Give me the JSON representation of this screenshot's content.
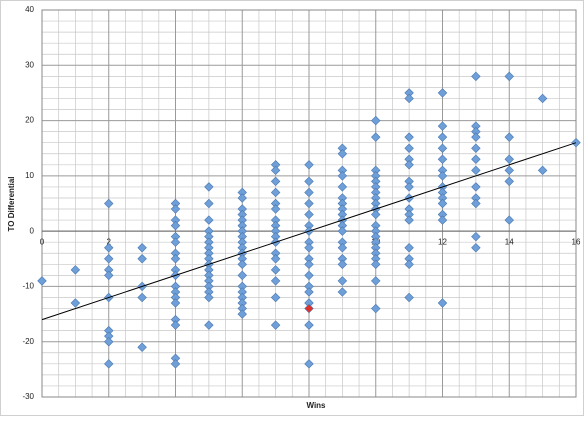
{
  "chart_data": {
    "type": "scatter",
    "x_label": "Wins",
    "y_label": "TO Differential",
    "xlim": [
      0,
      16
    ],
    "ylim": [
      -30,
      40
    ],
    "xticks": [
      0,
      2,
      4,
      6,
      8,
      10,
      12,
      14,
      16
    ],
    "yticks": [
      -30,
      -20,
      -10,
      0,
      10,
      20,
      30,
      40
    ],
    "grid": true,
    "minor_grid": true,
    "series": [
      {
        "color": "#6f9fd8",
        "x": [
          0,
          1,
          1,
          2,
          2,
          2,
          2,
          2,
          2,
          2,
          2,
          2,
          2,
          3,
          3,
          3,
          3,
          3,
          4,
          4,
          4,
          4,
          4,
          4,
          4,
          4,
          4,
          4,
          4,
          4,
          4,
          4,
          4,
          4,
          4,
          4,
          5,
          5,
          5,
          5,
          5,
          5,
          5,
          5,
          5,
          5,
          5,
          5,
          5,
          5,
          5,
          5,
          5,
          6,
          6,
          6,
          6,
          6,
          6,
          6,
          6,
          6,
          6,
          6,
          6,
          6,
          6,
          6,
          6,
          6,
          6,
          6,
          6,
          7,
          7,
          7,
          7,
          7,
          7,
          7,
          7,
          7,
          7,
          7,
          7,
          7,
          7,
          7,
          7,
          7,
          8,
          8,
          8,
          8,
          8,
          8,
          8,
          8,
          8,
          8,
          8,
          8,
          8,
          8,
          8,
          8,
          8,
          9,
          9,
          9,
          9,
          9,
          9,
          9,
          9,
          9,
          9,
          9,
          9,
          9,
          9,
          9,
          9,
          9,
          9,
          10,
          10,
          10,
          10,
          10,
          10,
          10,
          10,
          10,
          10,
          10,
          10,
          10,
          10,
          10,
          10,
          10,
          10,
          10,
          10,
          10,
          11,
          11,
          11,
          11,
          11,
          11,
          11,
          11,
          11,
          11,
          11,
          11,
          11,
          11,
          11,
          11,
          12,
          12,
          12,
          12,
          12,
          12,
          12,
          12,
          12,
          12,
          12,
          12,
          12,
          12,
          13,
          13,
          13,
          13,
          13,
          13,
          13,
          13,
          13,
          13,
          13,
          13,
          14,
          14,
          14,
          14,
          14,
          14,
          15,
          15,
          16
        ],
        "values": [
          -9,
          -7,
          -13,
          5,
          -3,
          -5,
          -7,
          -8,
          -12,
          -18,
          -19,
          -20,
          -24,
          -3,
          -5,
          -10,
          -12,
          -21,
          5,
          4,
          2,
          1,
          -1,
          -2,
          -4,
          -5,
          -7,
          -8,
          -10,
          -11,
          -12,
          -13,
          -16,
          -17,
          -23,
          -24,
          8,
          5,
          2,
          0,
          -1,
          -2,
          -3,
          -4,
          -5,
          -6,
          -7,
          -8,
          -9,
          -10,
          -11,
          -12,
          -17,
          7,
          6,
          4,
          3,
          2,
          1,
          0,
          -1,
          -2,
          -3,
          -4,
          -5,
          -6,
          -8,
          -10,
          -11,
          -12,
          -13,
          -14,
          -15,
          12,
          11,
          9,
          7,
          5,
          4,
          2,
          1,
          0,
          -1,
          -2,
          -4,
          -5,
          -7,
          -9,
          -12,
          -17,
          12,
          9,
          7,
          5,
          3,
          1,
          0,
          -2,
          -3,
          -5,
          -6,
          -8,
          -10,
          -11,
          -13,
          -17,
          -24,
          15,
          14,
          11,
          10,
          8,
          6,
          5,
          4,
          3,
          2,
          1,
          0,
          -2,
          -3,
          -5,
          -6,
          -9,
          -11,
          20,
          17,
          11,
          10,
          9,
          8,
          7,
          6,
          5,
          4,
          3,
          1,
          0,
          -1,
          -2,
          -3,
          -4,
          -5,
          -6,
          -9,
          -14,
          25,
          24,
          17,
          15,
          13,
          12,
          9,
          8,
          6,
          4,
          3,
          2,
          -3,
          -5,
          -6,
          -12,
          25,
          19,
          17,
          15,
          13,
          11,
          10,
          8,
          7,
          6,
          5,
          3,
          2,
          -13,
          28,
          19,
          18,
          17,
          15,
          13,
          11,
          8,
          6,
          5,
          -1,
          -3,
          28,
          17,
          13,
          11,
          9,
          2,
          24,
          11,
          16
        ]
      },
      {
        "color": "#e0302a",
        "x": [
          8
        ],
        "values": [
          -14
        ]
      }
    ],
    "trendline": {
      "color": "#000000",
      "x": [
        0,
        16
      ],
      "values": [
        -16,
        16
      ]
    }
  }
}
